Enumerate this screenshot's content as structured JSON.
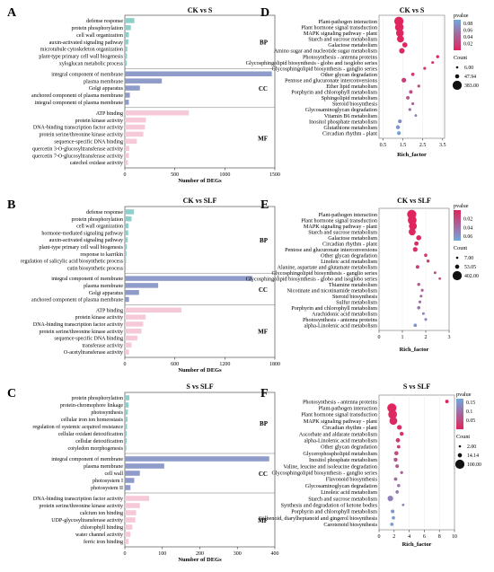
{
  "chart_data": [
    {
      "panel": "A",
      "type": "bar",
      "orientation": "horizontal",
      "title": "CK vs S",
      "xlabel": "Number of DEGs",
      "xticks": [
        0,
        500,
        1000,
        1500
      ],
      "xlim": [
        0,
        1500
      ],
      "groups": [
        {
          "name": "BP",
          "color": "#8ecfc9",
          "categories": [
            "defense response",
            "protein phosphorylation",
            "cell wall organization",
            "auxin-activated signaling pathway",
            "microtubule cytoskeleton organization",
            "plant-type primary cell wall biogenesis",
            "xyloglucan metabolic process"
          ],
          "values": [
            95,
            60,
            40,
            35,
            25,
            22,
            20
          ]
        },
        {
          "name": "CC",
          "color": "#8f9bc9",
          "categories": [
            "integral component of membrane",
            "plasma membrane",
            "Golgi apparatus",
            "anchored component of plasma membrane",
            "integral component of plasma membrane"
          ],
          "values": [
            1470,
            370,
            150,
            50,
            40
          ]
        },
        {
          "name": "MF",
          "color": "#f6c9d9",
          "categories": [
            "ATP binding",
            "protein kinase activity",
            "DNA-binding transcription factor activity",
            "protein serine/threonine kinase activity",
            "sequence-specific DNA binding",
            "quercetin 3-O-glucosyltransferase activity",
            "quercetin 7-O-glucosyltransferase activity",
            "catechol oxidase activity"
          ],
          "values": [
            640,
            210,
            200,
            185,
            120,
            45,
            40,
            30
          ]
        }
      ]
    },
    {
      "panel": "B",
      "type": "bar",
      "orientation": "horizontal",
      "title": "CK vs SLF",
      "xlabel": "Number of DEGs",
      "xticks": [
        0,
        600,
        1200,
        1800
      ],
      "xlim": [
        0,
        1800
      ],
      "groups": [
        {
          "name": "BP",
          "color": "#8ecfc9",
          "categories": [
            "defense response",
            "protein phosphorylation",
            "cell wall organization",
            "hormone-mediated signaling pathway",
            "auxin-activated signaling pathway",
            "plant-type primary cell wall biogenesis",
            "response to karrikin",
            "regulation of salicylic acid biosynthetic process",
            "cutin biosynthetic process"
          ],
          "values": [
            110,
            80,
            45,
            40,
            35,
            25,
            20,
            15,
            12
          ]
        },
        {
          "name": "CC",
          "color": "#8f9bc9",
          "categories": [
            "integral component of membrane",
            "plasma membrane",
            "Golgi apparatus",
            "anchored component of plasma membrane"
          ],
          "values": [
            1530,
            400,
            170,
            50
          ]
        },
        {
          "name": "MF",
          "color": "#f6c9d9",
          "categories": [
            "ATP binding",
            "protein kinase activity",
            "DNA-binding transcription factor activity",
            "protein serine/threonine kinase activity",
            "sequence-specific DNA binding",
            "transferase activity",
            "O-acetyltransferase activity"
          ],
          "values": [
            680,
            250,
            220,
            200,
            150,
            80,
            50
          ]
        }
      ]
    },
    {
      "panel": "C",
      "type": "bar",
      "orientation": "horizontal",
      "title": "S vs SLF",
      "xlabel": "Number of DEGs",
      "xticks": [
        0,
        100,
        200,
        300,
        400
      ],
      "xlim": [
        0,
        400
      ],
      "groups": [
        {
          "name": "BP",
          "color": "#8ecfc9",
          "categories": [
            "protein phosphorylation",
            "protein-chromophore linkage",
            "photosynthesis",
            "cellular iron ion homeostasis",
            "regulation of systemic acquired resistance",
            "cellular oxidant detoxification",
            "cellular detoxification",
            "cotyledon morphogenesis"
          ],
          "values": [
            12,
            10,
            8,
            7,
            6,
            5,
            5,
            4
          ]
        },
        {
          "name": "CC",
          "color": "#8f9bc9",
          "categories": [
            "integral component of membrane",
            "plasma membrane",
            "cell wall",
            "photosystem I",
            "photosystem II"
          ],
          "values": [
            385,
            105,
            40,
            25,
            15
          ]
        },
        {
          "name": "MF",
          "color": "#f6c9d9",
          "categories": [
            "DNA-binding transcription factor activity",
            "protein serine/threonine kinase activity",
            "calcium ion binding",
            "UDP-glycosyltransferase activity",
            "chlorophyll binding",
            "water channel activity",
            "ferric iron binding"
          ],
          "values": [
            65,
            40,
            30,
            28,
            20,
            15,
            10
          ]
        }
      ]
    },
    {
      "panel": "D",
      "type": "scatter",
      "title": "CK vs S",
      "xlabel": "Rich_factor",
      "xticks": [
        0.5,
        1.5,
        2.5,
        3.5
      ],
      "xlim": [
        0.3,
        3.6
      ],
      "color_legend": {
        "title": "pvalue",
        "ticks": [
          0.08,
          0.06,
          0.04,
          0.02
        ],
        "range": [
          0.0,
          0.09
        ],
        "low_color": "#e0245e",
        "high_color": "#6fa8dc"
      },
      "size_legend": {
        "title": "Count",
        "values": [
          6.0,
          47.94,
          383.0
        ]
      },
      "points": [
        {
          "label": "Plant-pathogen interaction",
          "x": 1.3,
          "count": 383,
          "p": 0.0
        },
        {
          "label": "Plant hormone signal transduction",
          "x": 1.32,
          "count": 330,
          "p": 0.0
        },
        {
          "label": "MAPK signaling pathway - plant",
          "x": 1.35,
          "count": 250,
          "p": 0.0
        },
        {
          "label": "Starch and sucrose metabolism",
          "x": 1.38,
          "count": 200,
          "p": 0.0
        },
        {
          "label": "Galactose metabolism",
          "x": 1.6,
          "count": 90,
          "p": 0.002
        },
        {
          "label": "Amino sugar and nucleotide sugar metabolism",
          "x": 1.45,
          "count": 110,
          "p": 0.003
        },
        {
          "label": "Photosynthesis - antenna proteins",
          "x": 3.25,
          "count": 20,
          "p": 0.005
        },
        {
          "label": "Glycosphingolipid biosynthesis - globo and isoglobo series",
          "x": 3.0,
          "count": 12,
          "p": 0.008
        },
        {
          "label": "Glycosphingolipid biosynthesis - ganglio series",
          "x": 2.6,
          "count": 15,
          "p": 0.012
        },
        {
          "label": "Other glycan degradation",
          "x": 2.0,
          "count": 25,
          "p": 0.015
        },
        {
          "label": "Pentose and glucuronate interconversions",
          "x": 1.55,
          "count": 70,
          "p": 0.018
        },
        {
          "label": "Ether lipid metabolism",
          "x": 2.3,
          "count": 15,
          "p": 0.022
        },
        {
          "label": "Porphyrin and chlorophyll metabolism",
          "x": 1.9,
          "count": 30,
          "p": 0.028
        },
        {
          "label": "Sphingolipid metabolism",
          "x": 1.75,
          "count": 30,
          "p": 0.035
        },
        {
          "label": "Steroid biosynthesis",
          "x": 2.0,
          "count": 14,
          "p": 0.042
        },
        {
          "label": "Glycosaminoglycan degradation",
          "x": 1.85,
          "count": 15,
          "p": 0.05
        },
        {
          "label": "Vitamin B6 metabolism",
          "x": 2.15,
          "count": 10,
          "p": 0.06
        },
        {
          "label": "Inositol phosphate metabolism",
          "x": 1.35,
          "count": 35,
          "p": 0.07
        },
        {
          "label": "Glutathione metabolism",
          "x": 1.25,
          "count": 45,
          "p": 0.08
        },
        {
          "label": "Circadian rhythm - plant",
          "x": 1.3,
          "count": 40,
          "p": 0.085
        }
      ]
    },
    {
      "panel": "E",
      "type": "scatter",
      "title": "CK vs SLF",
      "xlabel": "Rich_factor",
      "xticks": [
        0,
        1,
        2,
        3
      ],
      "xlim": [
        0,
        3
      ],
      "color_legend": {
        "title": "pvalue",
        "ticks": [
          0.02,
          0.04,
          0.06
        ],
        "range": [
          0.0,
          0.07
        ],
        "low_color": "#e0245e",
        "high_color": "#6fa8dc"
      },
      "size_legend": {
        "title": "Count",
        "values": [
          7.0,
          53.05,
          402.0
        ]
      },
      "points": [
        {
          "label": "Plant-pathogen interaction",
          "x": 1.4,
          "count": 402,
          "p": 0.0
        },
        {
          "label": "Plant hormone signal transduction",
          "x": 1.42,
          "count": 360,
          "p": 0.0
        },
        {
          "label": "MAPK signaling pathway - plant",
          "x": 1.45,
          "count": 280,
          "p": 0.0
        },
        {
          "label": "Starch and sucrose metabolism",
          "x": 1.42,
          "count": 210,
          "p": 0.0
        },
        {
          "label": "Galactose metabolism",
          "x": 1.7,
          "count": 90,
          "p": 0.002
        },
        {
          "label": "Circadian rhythm - plant",
          "x": 1.6,
          "count": 60,
          "p": 0.004
        },
        {
          "label": "Pentose and glucuronate interconversions",
          "x": 1.55,
          "count": 75,
          "p": 0.006
        },
        {
          "label": "Other glycan degradation",
          "x": 2.0,
          "count": 25,
          "p": 0.01
        },
        {
          "label": "Linoleic acid metabolism",
          "x": 2.1,
          "count": 20,
          "p": 0.012
        },
        {
          "label": "Alanine, aspartate and glutamate metabolism",
          "x": 1.65,
          "count": 35,
          "p": 0.015
        },
        {
          "label": "Glycosphingolipid biosynthesis - ganglio series",
          "x": 2.4,
          "count": 12,
          "p": 0.018
        },
        {
          "label": "Glycosphingolipid biosynthesis - globo and isoglobo series",
          "x": 2.6,
          "count": 10,
          "p": 0.02
        },
        {
          "label": "Thiamine metabolism",
          "x": 1.7,
          "count": 20,
          "p": 0.025
        },
        {
          "label": "Nicotinate and nicotinamide metabolism",
          "x": 1.85,
          "count": 15,
          "p": 0.03
        },
        {
          "label": "Steroid biosynthesis",
          "x": 1.8,
          "count": 14,
          "p": 0.035
        },
        {
          "label": "Sulfur metabolism",
          "x": 1.75,
          "count": 15,
          "p": 0.04
        },
        {
          "label": "Porphyrin and chlorophyll metabolism",
          "x": 1.7,
          "count": 25,
          "p": 0.045
        },
        {
          "label": "Arachidonic acid metabolism",
          "x": 1.9,
          "count": 12,
          "p": 0.05
        },
        {
          "label": "Photosynthesis - antenna proteins",
          "x": 2.0,
          "count": 15,
          "p": 0.055
        },
        {
          "label": "alpha-Linolenic acid metabolism",
          "x": 1.55,
          "count": 30,
          "p": 0.06
        }
      ]
    },
    {
      "panel": "F",
      "type": "scatter",
      "title": "S vs SLF",
      "xlabel": "Rich_factor",
      "xticks": [
        0,
        2,
        4,
        6,
        8,
        10
      ],
      "xlim": [
        0,
        10
      ],
      "color_legend": {
        "title": "pvalue",
        "ticks": [
          0.15,
          0.1,
          0.05
        ],
        "range": [
          0.0,
          0.17
        ],
        "low_color": "#e0245e",
        "high_color": "#6fa8dc"
      },
      "size_legend": {
        "title": "Count",
        "values": [
          2.0,
          14.14,
          100.0
        ]
      },
      "points": [
        {
          "label": "Photosynthesis - antenna proteins",
          "x": 9.0,
          "count": 8,
          "p": 0.0
        },
        {
          "label": "Plant-pathogen interaction",
          "x": 1.7,
          "count": 100,
          "p": 0.0
        },
        {
          "label": "Plant hormone signal transduction",
          "x": 1.8,
          "count": 90,
          "p": 0.005
        },
        {
          "label": "MAPK signaling pathway - plant",
          "x": 1.9,
          "count": 70,
          "p": 0.01
        },
        {
          "label": "Circadian rhythm - plant",
          "x": 2.7,
          "count": 20,
          "p": 0.015
        },
        {
          "label": "Ascorbate and aldarate metabolism",
          "x": 3.0,
          "count": 12,
          "p": 0.02
        },
        {
          "label": "alpha-Linolenic acid metabolism",
          "x": 2.5,
          "count": 15,
          "p": 0.03
        },
        {
          "label": "Other glycan degradation",
          "x": 2.6,
          "count": 8,
          "p": 0.04
        },
        {
          "label": "Glycerophospholipid metabolism",
          "x": 2.3,
          "count": 14,
          "p": 0.05
        },
        {
          "label": "Inositol phosphate metabolism",
          "x": 2.2,
          "count": 12,
          "p": 0.06
        },
        {
          "label": "Valine, leucine and isoleucine degradation",
          "x": 2.4,
          "count": 9,
          "p": 0.07
        },
        {
          "label": "Glycosphingolipid biosynthesis - ganglio series",
          "x": 3.0,
          "count": 5,
          "p": 0.08
        },
        {
          "label": "Flavonoid biosynthesis",
          "x": 2.2,
          "count": 8,
          "p": 0.09
        },
        {
          "label": "Glycosaminoglycan degradation",
          "x": 2.6,
          "count": 6,
          "p": 0.1
        },
        {
          "label": "Linoleic acid metabolism",
          "x": 2.4,
          "count": 7,
          "p": 0.11
        },
        {
          "label": "Starch and sucrose metabolism",
          "x": 1.5,
          "count": 30,
          "p": 0.12
        },
        {
          "label": "Synthesis and degradation of ketone bodies",
          "x": 3.2,
          "count": 3,
          "p": 0.13
        },
        {
          "label": "Porphyrin and chlorophyll metabolism",
          "x": 1.8,
          "count": 9,
          "p": 0.14
        },
        {
          "label": "Stilbenoid, diarylheptanoid and gingerol biosynthesis",
          "x": 1.9,
          "count": 7,
          "p": 0.15
        },
        {
          "label": "Carotenoid biosynthesis",
          "x": 1.7,
          "count": 8,
          "p": 0.16
        }
      ]
    }
  ]
}
